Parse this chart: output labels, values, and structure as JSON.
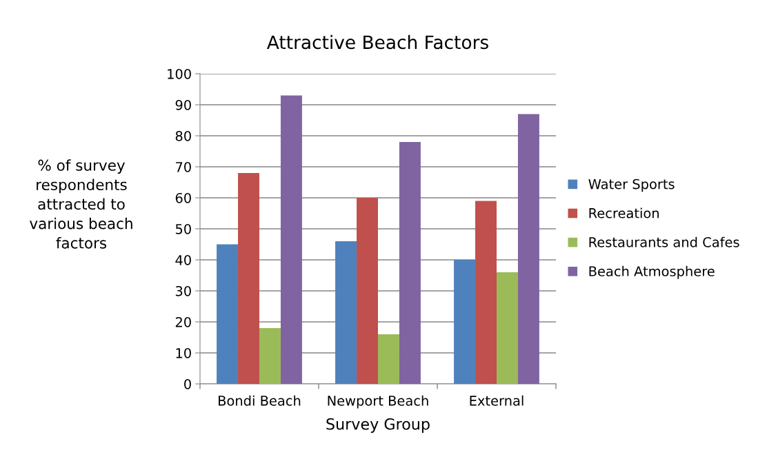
{
  "chart_data": {
    "type": "bar",
    "title": "Attractive Beach Factors",
    "xlabel": "Survey Group",
    "ylabel": "% of survey\nrespondents\nattracted to\nvarious beach\nfactors",
    "categories": [
      "Bondi Beach",
      "Newport Beach",
      "External"
    ],
    "series": [
      {
        "name": "Water Sports",
        "color": "#4f81bd",
        "values": [
          45,
          46,
          40
        ]
      },
      {
        "name": "Recreation",
        "color": "#c0504d",
        "values": [
          68,
          60,
          59
        ]
      },
      {
        "name": "Restaurants and Cafes",
        "color": "#9bbb59",
        "values": [
          18,
          16,
          36
        ]
      },
      {
        "name": "Beach Atmosphere",
        "color": "#8064a2",
        "values": [
          93,
          78,
          87
        ]
      }
    ],
    "ylim": [
      0,
      100
    ],
    "yticks": [
      0,
      10,
      20,
      30,
      40,
      50,
      60,
      70,
      80,
      90,
      100
    ],
    "grid": "y",
    "legend": "right"
  }
}
